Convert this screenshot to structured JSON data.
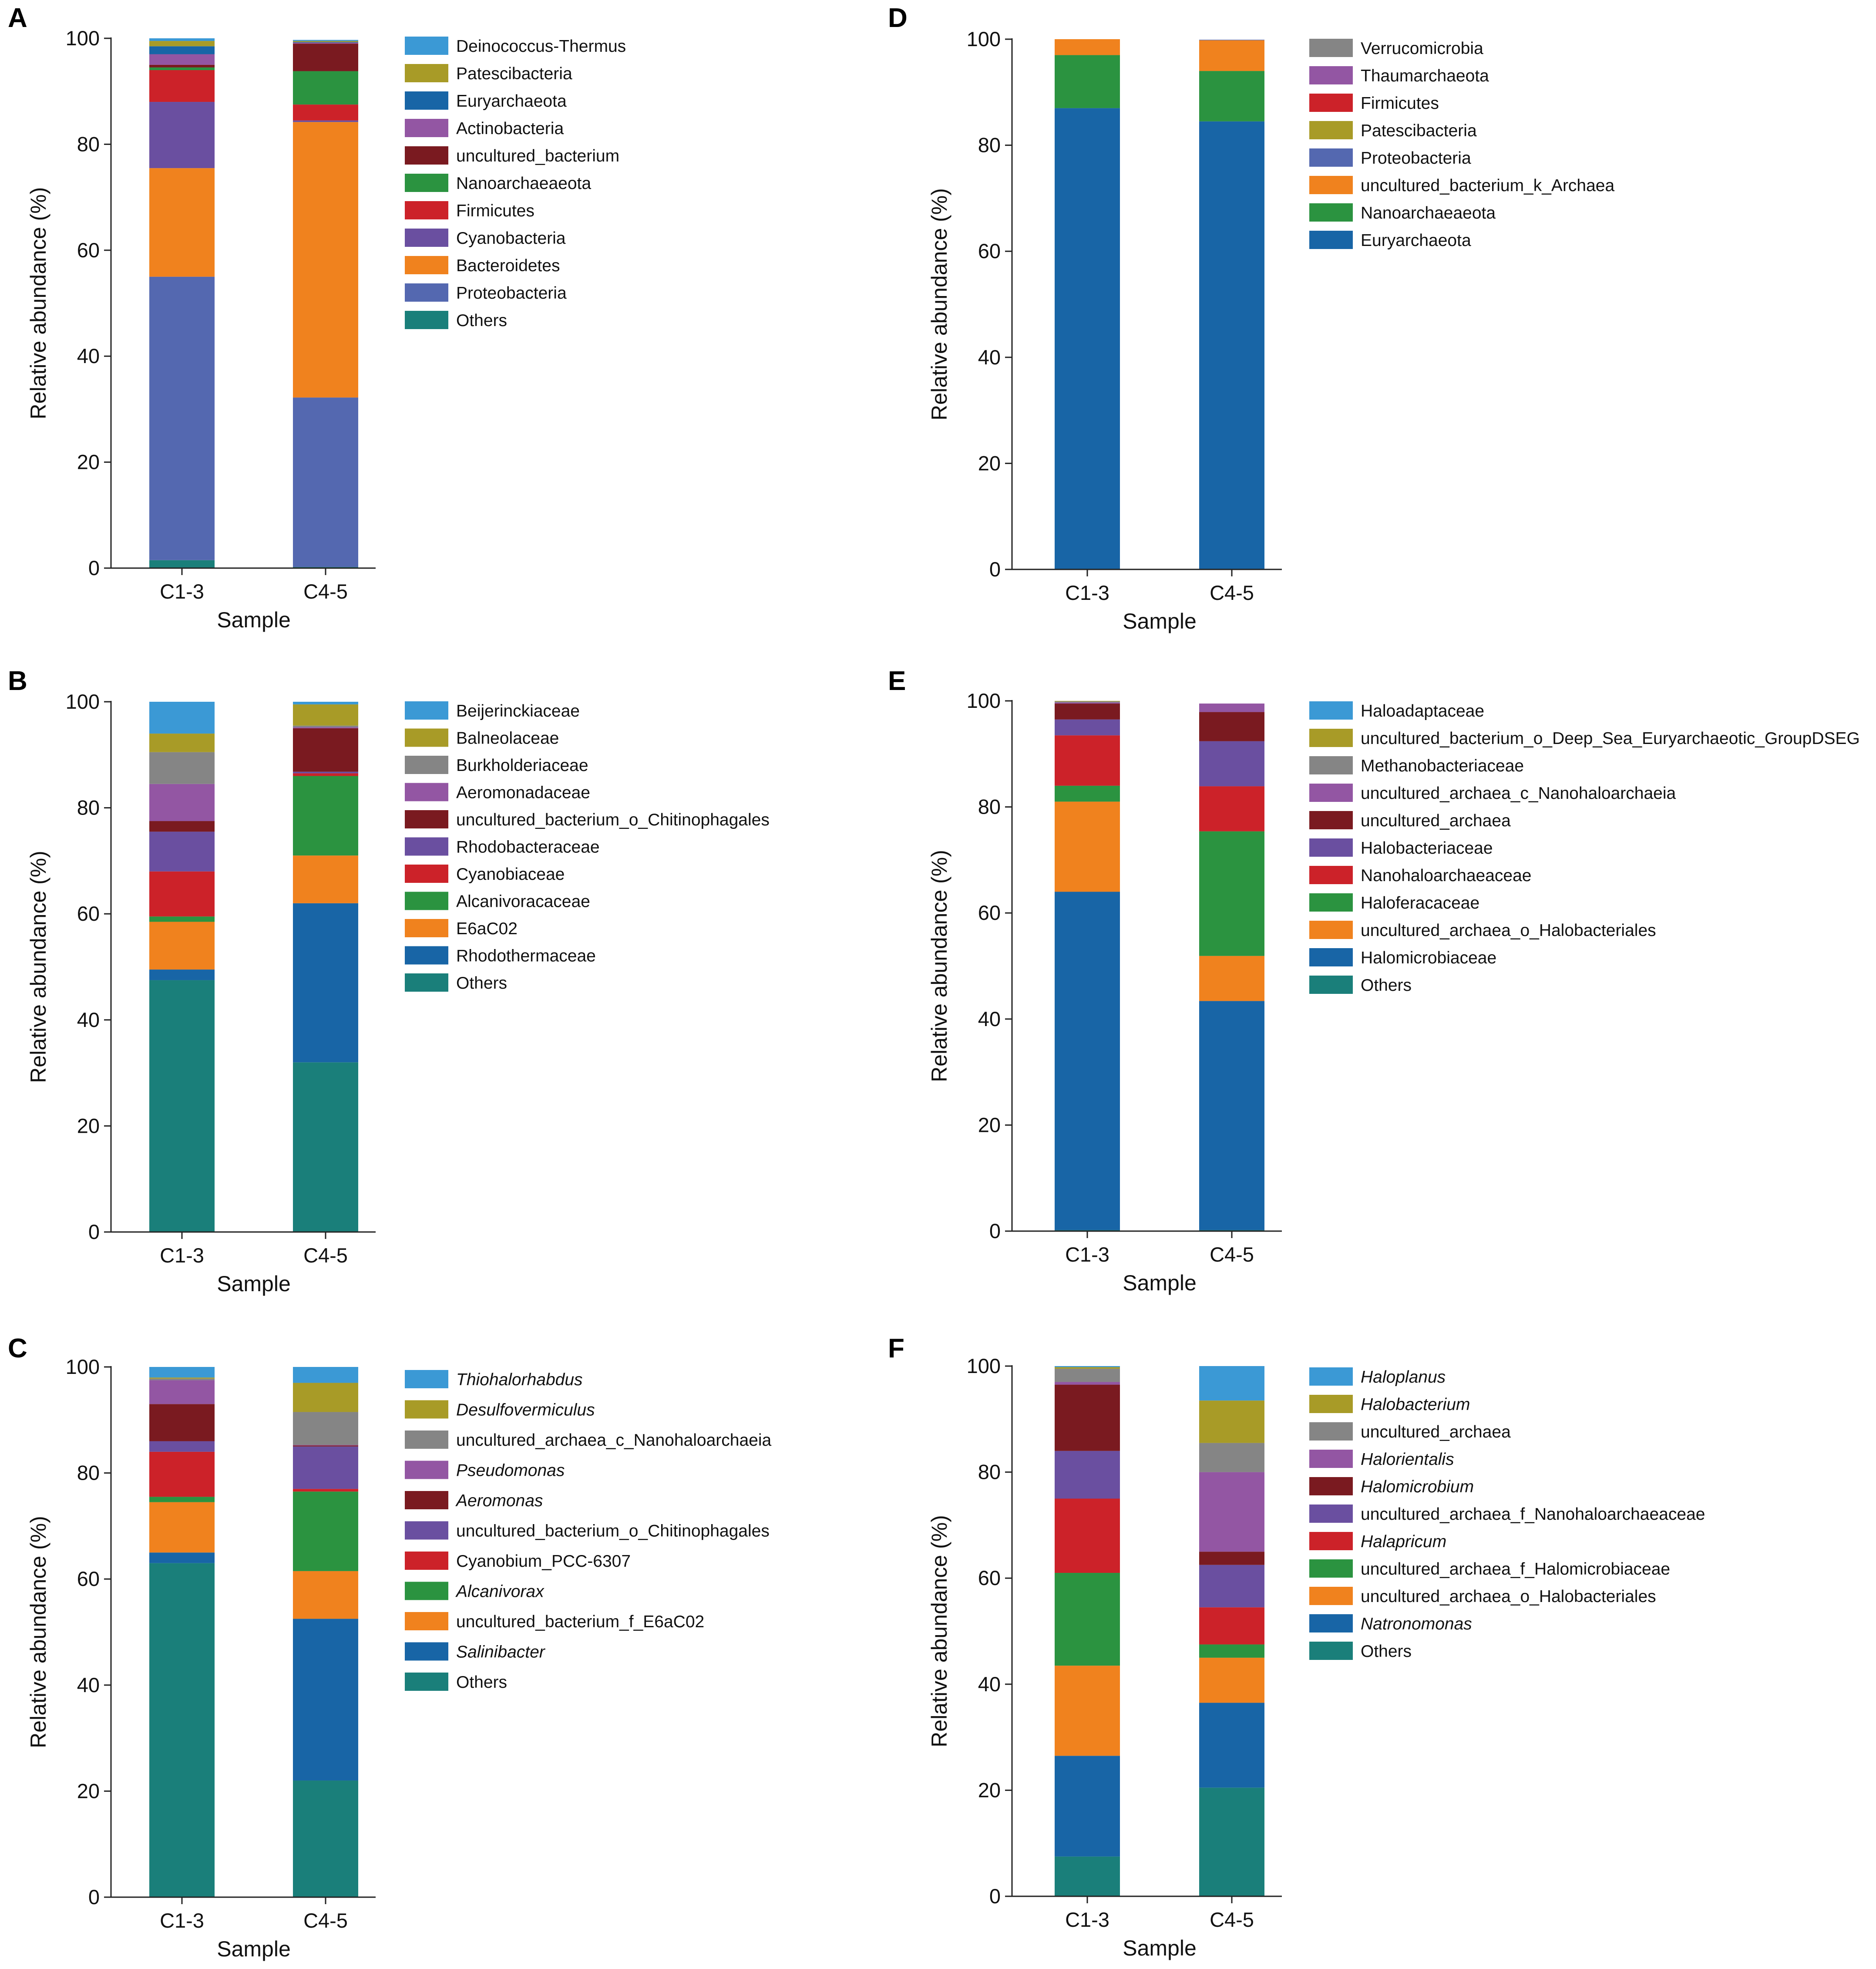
{
  "chart_data": [
    {
      "panel": "A",
      "type": "bar",
      "stacked": true,
      "categories": [
        "C1-3",
        "C4-5"
      ],
      "xlabel": "Sample",
      "ylabel": "Relative abundance (%)",
      "ylim": [
        0,
        100
      ],
      "yticks": [
        "0",
        "20",
        "40",
        "60",
        "80",
        "100"
      ],
      "series": [
        {
          "name": "Others",
          "color": "#1a7f7a",
          "values": [
            1.5,
            0.2
          ]
        },
        {
          "name": "Proteobacteria",
          "color": "#5468b0",
          "values": [
            53.5,
            32.0
          ]
        },
        {
          "name": "Bacteroidetes",
          "color": "#f0821e",
          "values": [
            20.5,
            52.0
          ]
        },
        {
          "name": "Cyanobacteria",
          "color": "#6a4fa0",
          "values": [
            12.5,
            0.3
          ]
        },
        {
          "name": "Firmicutes",
          "color": "#cc2229",
          "values": [
            6.0,
            3.0
          ]
        },
        {
          "name": "Nanoarchaeaeota",
          "color": "#2b9340",
          "values": [
            0.5,
            6.3
          ]
        },
        {
          "name": "uncultured_bacterium",
          "color": "#7a1a20",
          "values": [
            0.5,
            5.2
          ]
        },
        {
          "name": "Actinobacteria",
          "color": "#9356a3",
          "values": [
            2.0,
            0.2
          ]
        },
        {
          "name": "Euryarchaeota",
          "color": "#1865a6",
          "values": [
            1.5,
            0.1
          ]
        },
        {
          "name": "Patescibacteria",
          "color": "#a89b27",
          "values": [
            1.0,
            0.2
          ]
        },
        {
          "name": "Deinococcus-Thermus",
          "color": "#3b99d5",
          "values": [
            0.5,
            0.2
          ]
        }
      ]
    },
    {
      "panel": "B",
      "type": "bar",
      "stacked": true,
      "categories": [
        "C1-3",
        "C4-5"
      ],
      "xlabel": "Sample",
      "ylabel": "Relative abundance (%)",
      "ylim": [
        0,
        100
      ],
      "yticks": [
        "0",
        "20",
        "40",
        "60",
        "80",
        "100"
      ],
      "series": [
        {
          "name": "Others",
          "color": "#1a7f7a",
          "values": [
            47.5,
            32.0
          ]
        },
        {
          "name": "Rhodothermaceae",
          "color": "#1865a6",
          "values": [
            2.0,
            30.0
          ]
        },
        {
          "name": "E6aC02",
          "color": "#f0821e",
          "values": [
            9.0,
            9.0
          ]
        },
        {
          "name": "Alcanivoracaceae",
          "color": "#2b9340",
          "values": [
            1.0,
            15.0
          ]
        },
        {
          "name": "Cyanobiaceae",
          "color": "#cc2229",
          "values": [
            8.5,
            0.5
          ]
        },
        {
          "name": "Rhodobacteraceae",
          "color": "#6a4fa0",
          "values": [
            7.5,
            0.3
          ]
        },
        {
          "name": "uncultured_bacterium_o_Chitinophagales",
          "color": "#7a1a20",
          "values": [
            2.0,
            8.2
          ]
        },
        {
          "name": "Aeromonadaceae",
          "color": "#9356a3",
          "values": [
            7.0,
            0.2
          ]
        },
        {
          "name": "Burkholderiaceae",
          "color": "#858585",
          "values": [
            6.0,
            0.3
          ]
        },
        {
          "name": "Balneolaceae",
          "color": "#a89b27",
          "values": [
            3.5,
            4.0
          ]
        },
        {
          "name": "Beijerinckiaceae",
          "color": "#3b99d5",
          "values": [
            6.0,
            0.5
          ]
        }
      ]
    },
    {
      "panel": "C",
      "type": "bar",
      "stacked": true,
      "categories": [
        "C1-3",
        "C4-5"
      ],
      "xlabel": "Sample",
      "ylabel": "Relative abundance (%)",
      "ylim": [
        0,
        100
      ],
      "yticks": [
        "0",
        "20",
        "40",
        "60",
        "80",
        "100"
      ],
      "series": [
        {
          "name": "Others",
          "italic": false,
          "color": "#1a7f7a",
          "values": [
            63.0,
            22.0
          ]
        },
        {
          "name": "Salinibacter",
          "italic": true,
          "color": "#1865a6",
          "values": [
            2.0,
            30.5
          ]
        },
        {
          "name": "uncultured_bacterium_f_E6aC02",
          "italic": false,
          "color": "#f0821e",
          "values": [
            9.5,
            9.0
          ]
        },
        {
          "name": "Alcanivorax",
          "italic": true,
          "color": "#2b9340",
          "values": [
            1.0,
            15.0
          ]
        },
        {
          "name": "Cyanobium_PCC-6307",
          "italic": false,
          "color": "#cc2229",
          "values": [
            8.5,
            0.5
          ]
        },
        {
          "name": "uncultured_bacterium_o_Chitinophagales",
          "italic": false,
          "color": "#6a4fa0",
          "values": [
            2.0,
            8.0
          ]
        },
        {
          "name": "Aeromonas",
          "italic": true,
          "color": "#7a1a20",
          "values": [
            7.0,
            0.2
          ]
        },
        {
          "name": "Pseudomonas",
          "italic": true,
          "color": "#9356a3",
          "values": [
            4.5,
            0.1
          ]
        },
        {
          "name": "uncultured_archaea_c_Nanohaloarchaeia",
          "italic": false,
          "color": "#858585",
          "values": [
            0.3,
            6.2
          ]
        },
        {
          "name": "Desulfovermiculus",
          "italic": true,
          "color": "#a89b27",
          "values": [
            0.2,
            5.5
          ]
        },
        {
          "name": "Thiohalorhabdus",
          "italic": true,
          "color": "#3b99d5",
          "values": [
            2.0,
            3.0
          ]
        }
      ]
    },
    {
      "panel": "D",
      "type": "bar",
      "stacked": true,
      "categories": [
        "C1-3",
        "C4-5"
      ],
      "xlabel": "Sample",
      "ylabel": "Relative abundance (%)",
      "ylim": [
        0,
        100
      ],
      "yticks": [
        "0",
        "20",
        "40",
        "60",
        "80",
        "100"
      ],
      "series": [
        {
          "name": "Euryarchaeota",
          "color": "#1865a6",
          "values": [
            87.0,
            84.5
          ]
        },
        {
          "name": "Nanoarchaeaeota",
          "color": "#2b9340",
          "values": [
            10.0,
            9.5
          ]
        },
        {
          "name": "uncultured_bacterium_k_Archaea",
          "color": "#f0821e",
          "values": [
            3.0,
            5.8
          ]
        },
        {
          "name": "Proteobacteria",
          "color": "#5468b0",
          "values": [
            0.0,
            0.1
          ]
        },
        {
          "name": "Patescibacteria",
          "color": "#a89b27",
          "values": [
            0.0,
            0.0
          ]
        },
        {
          "name": "Firmicutes",
          "color": "#cc2229",
          "values": [
            0.0,
            0.0
          ]
        },
        {
          "name": "Thaumarchaeota",
          "color": "#9356a3",
          "values": [
            0.0,
            0.0
          ]
        },
        {
          "name": "Verrucomicrobia",
          "color": "#858585",
          "values": [
            0.0,
            0.0
          ]
        }
      ]
    },
    {
      "panel": "E",
      "type": "bar",
      "stacked": true,
      "categories": [
        "C1-3",
        "C4-5"
      ],
      "xlabel": "Sample",
      "ylabel": "Relative abundance (%)",
      "ylim": [
        0,
        100
      ],
      "yticks": [
        "0",
        "20",
        "40",
        "60",
        "80",
        "100"
      ],
      "series": [
        {
          "name": "Others",
          "color": "#1a7f7a",
          "values": [
            0.2,
            0.2
          ]
        },
        {
          "name": "Halomicrobiaceae",
          "color": "#1865a6",
          "values": [
            63.8,
            43.2
          ]
        },
        {
          "name": "uncultured_archaea_o_Halobacteriales",
          "color": "#f0821e",
          "values": [
            17.0,
            8.5
          ]
        },
        {
          "name": "Haloferacaceae",
          "color": "#2b9340",
          "values": [
            3.0,
            23.5
          ]
        },
        {
          "name": "Nanohaloarchaeaceae",
          "color": "#cc2229",
          "values": [
            9.5,
            8.5
          ]
        },
        {
          "name": "Halobacteriaceae",
          "color": "#6a4fa0",
          "values": [
            3.0,
            8.5
          ]
        },
        {
          "name": "uncultured_archaea",
          "color": "#7a1a20",
          "values": [
            3.0,
            5.5
          ]
        },
        {
          "name": "uncultured_archaea_c_Nanohaloarchaeia",
          "color": "#9356a3",
          "values": [
            0.2,
            1.6
          ]
        },
        {
          "name": "Methanobacteriaceae",
          "color": "#858585",
          "values": [
            0.2,
            0.0
          ]
        },
        {
          "name": "uncultured_bacterium_o_Deep_Sea_Euryarchaeotic_GroupDSEG",
          "color": "#a89b27",
          "values": [
            0.1,
            0.0
          ]
        },
        {
          "name": "Haloadaptaceae",
          "color": "#3b99d5",
          "values": [
            0.0,
            0.0
          ]
        }
      ]
    },
    {
      "panel": "F",
      "type": "bar",
      "stacked": true,
      "categories": [
        "C1-3",
        "C4-5"
      ],
      "xlabel": "Sample",
      "ylabel": "Relative abundance (%)",
      "ylim": [
        0,
        100
      ],
      "yticks": [
        "0",
        "20",
        "40",
        "60",
        "80",
        "100"
      ],
      "series": [
        {
          "name": "Others",
          "italic": false,
          "color": "#1a7f7a",
          "values": [
            7.5,
            20.5
          ]
        },
        {
          "name": "Natronomonas",
          "italic": true,
          "color": "#1865a6",
          "values": [
            19.0,
            16.0
          ]
        },
        {
          "name": "uncultured_archaea_o_Halobacteriales",
          "italic": false,
          "color": "#f0821e",
          "values": [
            17.0,
            8.5
          ]
        },
        {
          "name": "uncultured_archaea_f_Halomicrobiaceae",
          "italic": false,
          "color": "#2b9340",
          "values": [
            17.5,
            2.5
          ]
        },
        {
          "name": "Halapricum",
          "italic": true,
          "color": "#cc2229",
          "values": [
            14.0,
            7.0
          ]
        },
        {
          "name": "uncultured_archaea_f_Nanohaloarchaeaceae",
          "italic": false,
          "color": "#6a4fa0",
          "values": [
            9.0,
            8.0
          ]
        },
        {
          "name": "Halomicrobium",
          "italic": true,
          "color": "#7a1a20",
          "values": [
            12.5,
            2.5
          ]
        },
        {
          "name": "Halorientalis",
          "italic": true,
          "color": "#9356a3",
          "values": [
            0.5,
            15.0
          ]
        },
        {
          "name": "uncultured_archaea",
          "italic": false,
          "color": "#858585",
          "values": [
            2.5,
            5.5
          ]
        },
        {
          "name": "Halobacterium",
          "italic": true,
          "color": "#a89b27",
          "values": [
            0.3,
            8.0
          ]
        },
        {
          "name": "Haloplanus",
          "italic": true,
          "color": "#3b99d5",
          "values": [
            0.2,
            6.5
          ]
        }
      ]
    }
  ]
}
